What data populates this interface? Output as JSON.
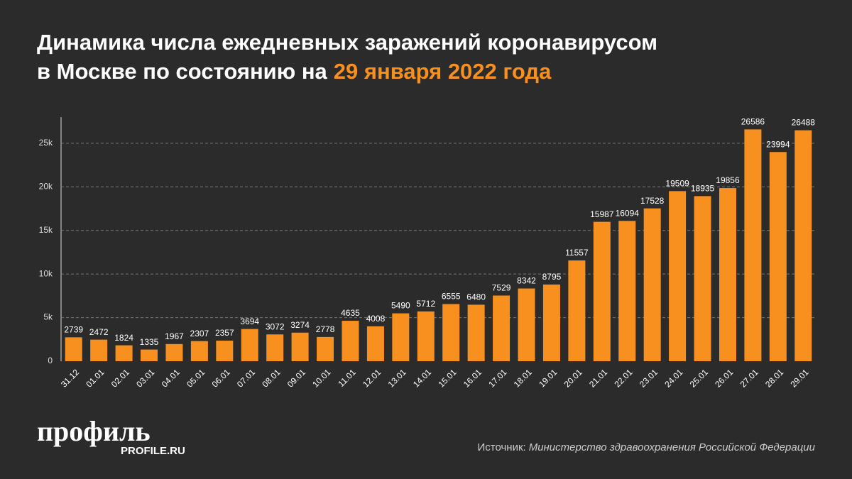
{
  "chart_data": {
    "type": "bar",
    "title_line1": "Динамика числа ежедневных заражений коронавирусом",
    "title_line2": "в Москве по состоянию на",
    "title_highlight": "29 января 2022 года",
    "categories": [
      "31.12",
      "01.01",
      "02.01",
      "03.01",
      "04.01",
      "05.01",
      "06.01",
      "07.01",
      "08.01",
      "09.01",
      "10.01",
      "11.01",
      "12.01",
      "13.01",
      "14.01",
      "15.01",
      "16.01",
      "17.01",
      "18.01",
      "19.01",
      "20.01",
      "21.01",
      "22.01",
      "23.01",
      "24.01",
      "25.01",
      "26.01",
      "27.01",
      "28.01",
      "29.01"
    ],
    "values": [
      2739,
      2472,
      1824,
      1335,
      1967,
      2307,
      2357,
      3694,
      3072,
      3274,
      2778,
      4635,
      4008,
      5490,
      5712,
      6555,
      6480,
      7529,
      8342,
      8795,
      11557,
      15987,
      16094,
      17528,
      19509,
      18935,
      19856,
      26586,
      23994,
      26488
    ],
    "color": "#f7901e",
    "ylim": [
      0,
      28000
    ],
    "yticks": [
      0,
      {
        "value": 5000,
        "label": "5k"
      },
      {
        "value": 10000,
        "label": "10k"
      },
      {
        "value": 15000,
        "label": "15k"
      },
      {
        "value": 20000,
        "label": "20k"
      },
      {
        "value": 25000,
        "label": "25k"
      }
    ],
    "grid": true,
    "source_prefix": "Источник:",
    "source": "Министерство здравоохранения Российской Федерации",
    "logo": "профиль",
    "logo_url": "PROFILE.RU"
  }
}
